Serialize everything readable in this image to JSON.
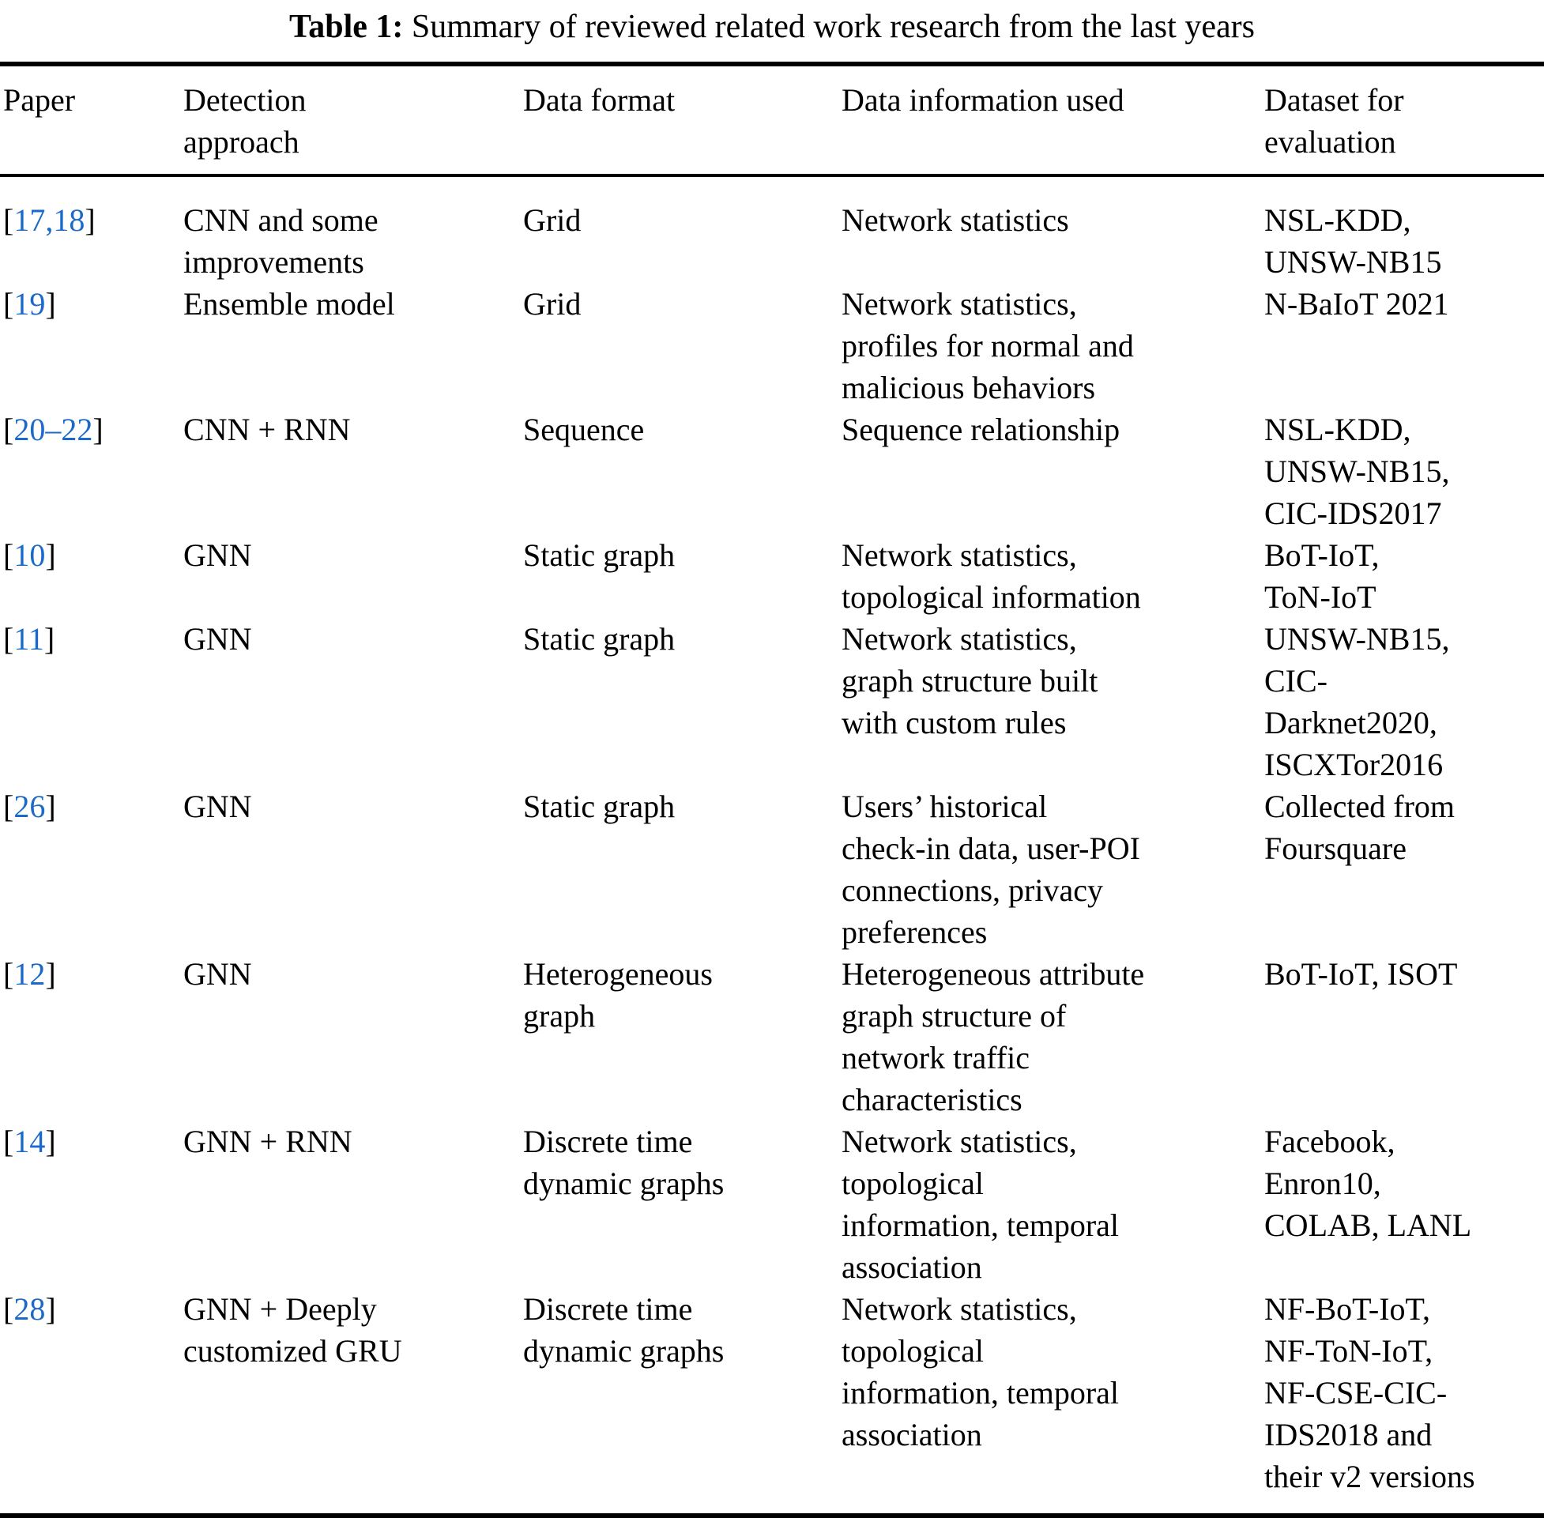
{
  "caption": {
    "label": "Table 1:",
    "text": " Summary of reviewed related work research from the last years"
  },
  "colors": {
    "citation_blue": "#1b6ac9",
    "text": "#000000",
    "rule": "#000000"
  },
  "columns": [
    {
      "label_lines": [
        "Paper"
      ]
    },
    {
      "label_lines": [
        "Detection",
        "approach"
      ]
    },
    {
      "label_lines": [
        "Data format"
      ]
    },
    {
      "label_lines": [
        "Data information used"
      ]
    },
    {
      "label_lines": [
        "Dataset for",
        "evaluation"
      ]
    }
  ],
  "rows": [
    {
      "paper": {
        "open": "[",
        "cite": "17,18",
        "close": "]"
      },
      "approach": [
        "CNN and some",
        "improvements"
      ],
      "format": [
        "Grid"
      ],
      "info": [
        "Network statistics"
      ],
      "dataset": [
        "NSL-KDD,",
        "UNSW-NB15"
      ]
    },
    {
      "paper": {
        "open": "[",
        "cite": "19",
        "close": "]"
      },
      "approach": [
        "Ensemble model"
      ],
      "format": [
        "Grid"
      ],
      "info": [
        "Network statistics,",
        "profiles for normal and",
        "malicious behaviors"
      ],
      "dataset": [
        "N-BaIoT 2021"
      ]
    },
    {
      "paper": {
        "open": "[",
        "cite": "20–22",
        "close": "]"
      },
      "approach": [
        "CNN + RNN"
      ],
      "format": [
        "Sequence"
      ],
      "info": [
        "Sequence relationship"
      ],
      "dataset": [
        "NSL-KDD,",
        "UNSW-NB15,",
        "CIC-IDS2017"
      ]
    },
    {
      "paper": {
        "open": "[",
        "cite": "10",
        "close": "]"
      },
      "approach": [
        "GNN"
      ],
      "format": [
        "Static graph"
      ],
      "info": [
        "Network statistics,",
        "topological information"
      ],
      "dataset": [
        "BoT-IoT,",
        "ToN-IoT"
      ]
    },
    {
      "paper": {
        "open": "[",
        "cite": "11",
        "close": "]"
      },
      "approach": [
        "GNN"
      ],
      "format": [
        "Static graph"
      ],
      "info": [
        "Network statistics,",
        "graph structure built",
        "with custom rules"
      ],
      "dataset": [
        "UNSW-NB15,",
        "CIC-",
        "Darknet2020,",
        "ISCXTor2016"
      ]
    },
    {
      "paper": {
        "open": "[",
        "cite": "26",
        "close": "]"
      },
      "approach": [
        "GNN"
      ],
      "format": [
        "Static graph"
      ],
      "info": [
        "Users’ historical",
        "check-in data, user-POI",
        "connections, privacy",
        "preferences"
      ],
      "dataset": [
        "Collected from",
        "Foursquare"
      ]
    },
    {
      "paper": {
        "open": "[",
        "cite": "12",
        "close": "]"
      },
      "approach": [
        "GNN"
      ],
      "format": [
        "Heterogeneous",
        "graph"
      ],
      "info": [
        "Heterogeneous attribute",
        "graph structure of",
        "network traffic",
        "characteristics"
      ],
      "dataset": [
        "BoT-IoT, ISOT"
      ]
    },
    {
      "paper": {
        "open": "[",
        "cite": "14",
        "close": "]"
      },
      "approach": [
        "GNN + RNN"
      ],
      "format": [
        "Discrete time",
        "dynamic graphs"
      ],
      "info": [
        "Network statistics,",
        "topological",
        "information, temporal",
        "association"
      ],
      "dataset": [
        "Facebook,",
        "Enron10,",
        "COLAB, LANL"
      ]
    },
    {
      "paper": {
        "open": "[",
        "cite": "28",
        "close": "]"
      },
      "approach": [
        "GNN + Deeply",
        "customized GRU"
      ],
      "format": [
        "Discrete time",
        "dynamic graphs"
      ],
      "info": [
        "Network statistics,",
        "topological",
        "information, temporal",
        "association"
      ],
      "dataset": [
        "NF-BoT-IoT,",
        "NF-ToN-IoT,",
        "NF-CSE-CIC-",
        "IDS2018 and",
        "their v2 versions"
      ]
    }
  ]
}
